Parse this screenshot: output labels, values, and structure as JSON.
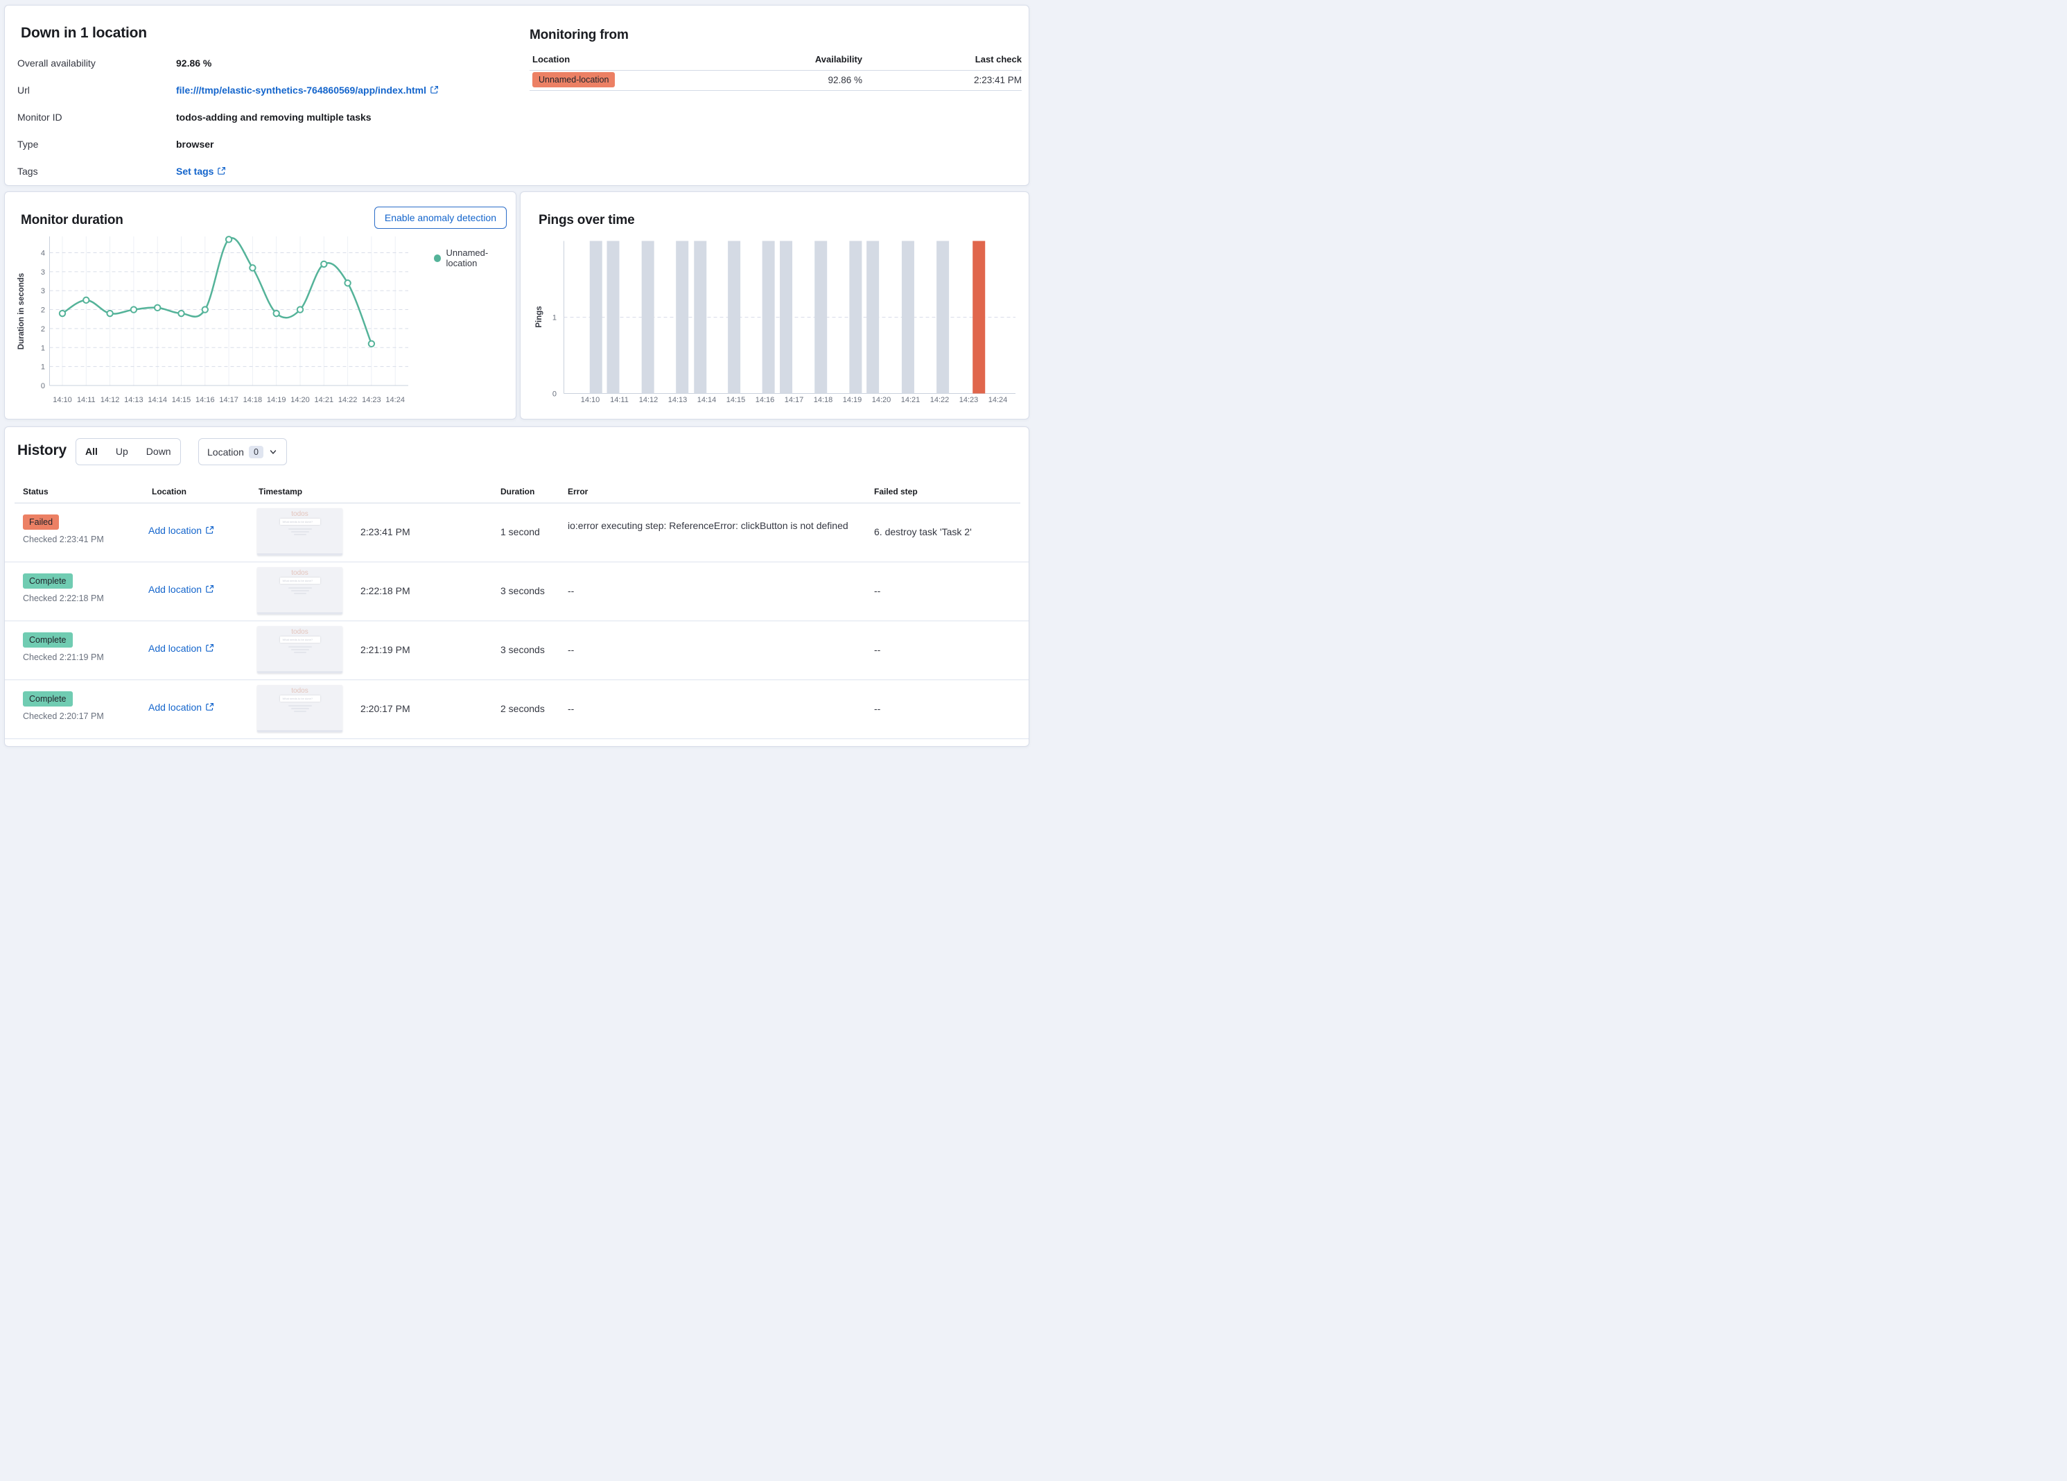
{
  "accent_colors": {
    "link_blue": "#1465cc",
    "badge_down": "#ec8064",
    "badge_up": "#70ccb2",
    "line_green": "#54b399",
    "bar_gray": "#d4dae4",
    "bar_red": "#e0664c"
  },
  "overview": {
    "title": "Down in 1 location",
    "fields": [
      {
        "label": "Overall availability",
        "value": "92.86 %",
        "type": "text"
      },
      {
        "label": "Url",
        "value": "file:///tmp/elastic-synthetics-764860569/app/index.html",
        "type": "link"
      },
      {
        "label": "Monitor ID",
        "value": "todos-adding and removing multiple tasks",
        "type": "text"
      },
      {
        "label": "Type",
        "value": "browser",
        "type": "text"
      },
      {
        "label": "Tags",
        "value": "Set tags",
        "type": "link"
      }
    ]
  },
  "monitoring_from": {
    "title": "Monitoring from",
    "columns": [
      "Location",
      "Availability",
      "Last check"
    ],
    "rows": [
      {
        "location": "Unnamed-location",
        "availability": "92.86 %",
        "last_check": "2:23:41 PM",
        "status": "down"
      }
    ]
  },
  "monitor_duration": {
    "title": "Monitor duration",
    "button_label": "Enable anomaly detection",
    "legend": "Unnamed-location"
  },
  "pings_panel": {
    "title": "Pings over time"
  },
  "history": {
    "title": "History",
    "status_filters": [
      "All",
      "Up",
      "Down"
    ],
    "active_filter": "All",
    "location_filter": {
      "label": "Location",
      "count": "0"
    },
    "columns": [
      "Status",
      "Location",
      "Timestamp",
      "Duration",
      "Error",
      "Failed step"
    ],
    "location_link": "Add location",
    "thumbnail": {
      "app_title": "todos",
      "input_placeholder": "What needs to be done?"
    },
    "rows": [
      {
        "status": "Failed",
        "checked": "Checked 2:23:41 PM",
        "timestamp": "2:23:41 PM",
        "duration": "1 second",
        "error": "io:error executing step: ReferenceError: clickButton is not defined",
        "failed_step": "6. destroy task 'Task 2'"
      },
      {
        "status": "Complete",
        "checked": "Checked 2:22:18 PM",
        "timestamp": "2:22:18 PM",
        "duration": "3 seconds",
        "error": "--",
        "failed_step": "--"
      },
      {
        "status": "Complete",
        "checked": "Checked 2:21:19 PM",
        "timestamp": "2:21:19 PM",
        "duration": "3 seconds",
        "error": "--",
        "failed_step": "--"
      },
      {
        "status": "Complete",
        "checked": "Checked 2:20:17 PM",
        "timestamp": "2:20:17 PM",
        "duration": "2 seconds",
        "error": "--",
        "failed_step": "--"
      }
    ]
  },
  "chart_data": [
    {
      "type": "line",
      "title": "Monitor duration",
      "series": [
        {
          "name": "Unnamed-location",
          "x": [
            "14:10",
            "14:11",
            "14:12",
            "14:13",
            "14:14",
            "14:15",
            "14:16",
            "14:17",
            "14:18",
            "14:19",
            "14:20",
            "14:21",
            "14:22",
            "14:23"
          ],
          "values": [
            1.9,
            2.25,
            1.9,
            2.0,
            2.05,
            1.9,
            2.0,
            3.85,
            3.1,
            1.9,
            2.0,
            3.2,
            2.7,
            1.1
          ]
        }
      ],
      "xlabel": "",
      "ylabel": "Duration in seconds",
      "xticks": [
        "14:10",
        "14:11",
        "14:12",
        "14:13",
        "14:14",
        "14:15",
        "14:16",
        "14:17",
        "14:18",
        "14:19",
        "14:20",
        "14:21",
        "14:22",
        "14:23",
        "14:24"
      ],
      "yticks": [
        {
          "v": 0,
          "label": "0"
        },
        {
          "v": 0.5,
          "label": "1"
        },
        {
          "v": 1,
          "label": "1"
        },
        {
          "v": 1.5,
          "label": "2"
        },
        {
          "v": 2,
          "label": "2"
        },
        {
          "v": 2.5,
          "label": "3"
        },
        {
          "v": 3,
          "label": "3"
        },
        {
          "v": 3.5,
          "label": "4"
        }
      ],
      "ylim": [
        0,
        3.95
      ],
      "grid": true,
      "legend_position": "right-top"
    },
    {
      "type": "bar",
      "title": "Pings over time",
      "xlabel": "",
      "ylabel": "Pings",
      "xticks": [
        "14:10",
        "14:11",
        "14:12",
        "14:13",
        "14:14",
        "14:15",
        "14:16",
        "14:17",
        "14:18",
        "14:19",
        "14:20",
        "14:21",
        "14:22",
        "14:23",
        "14:24"
      ],
      "yticks": [
        {
          "v": 0,
          "label": "0"
        },
        {
          "v": 1,
          "label": "1"
        }
      ],
      "ylim": [
        0,
        2
      ],
      "bars": [
        {
          "x_frac": 0.071,
          "count": 2,
          "status": "up"
        },
        {
          "x_frac": 0.109,
          "count": 2,
          "status": "up"
        },
        {
          "x_frac": 0.186,
          "count": 2,
          "status": "up"
        },
        {
          "x_frac": 0.262,
          "count": 2,
          "status": "up"
        },
        {
          "x_frac": 0.302,
          "count": 2,
          "status": "up"
        },
        {
          "x_frac": 0.377,
          "count": 2,
          "status": "up"
        },
        {
          "x_frac": 0.453,
          "count": 2,
          "status": "up"
        },
        {
          "x_frac": 0.492,
          "count": 2,
          "status": "up"
        },
        {
          "x_frac": 0.569,
          "count": 2,
          "status": "up"
        },
        {
          "x_frac": 0.646,
          "count": 2,
          "status": "up"
        },
        {
          "x_frac": 0.684,
          "count": 2,
          "status": "up"
        },
        {
          "x_frac": 0.762,
          "count": 2,
          "status": "up"
        },
        {
          "x_frac": 0.839,
          "count": 2,
          "status": "up"
        },
        {
          "x_frac": 0.919,
          "count": 2,
          "status": "down"
        }
      ],
      "grid": true
    }
  ]
}
